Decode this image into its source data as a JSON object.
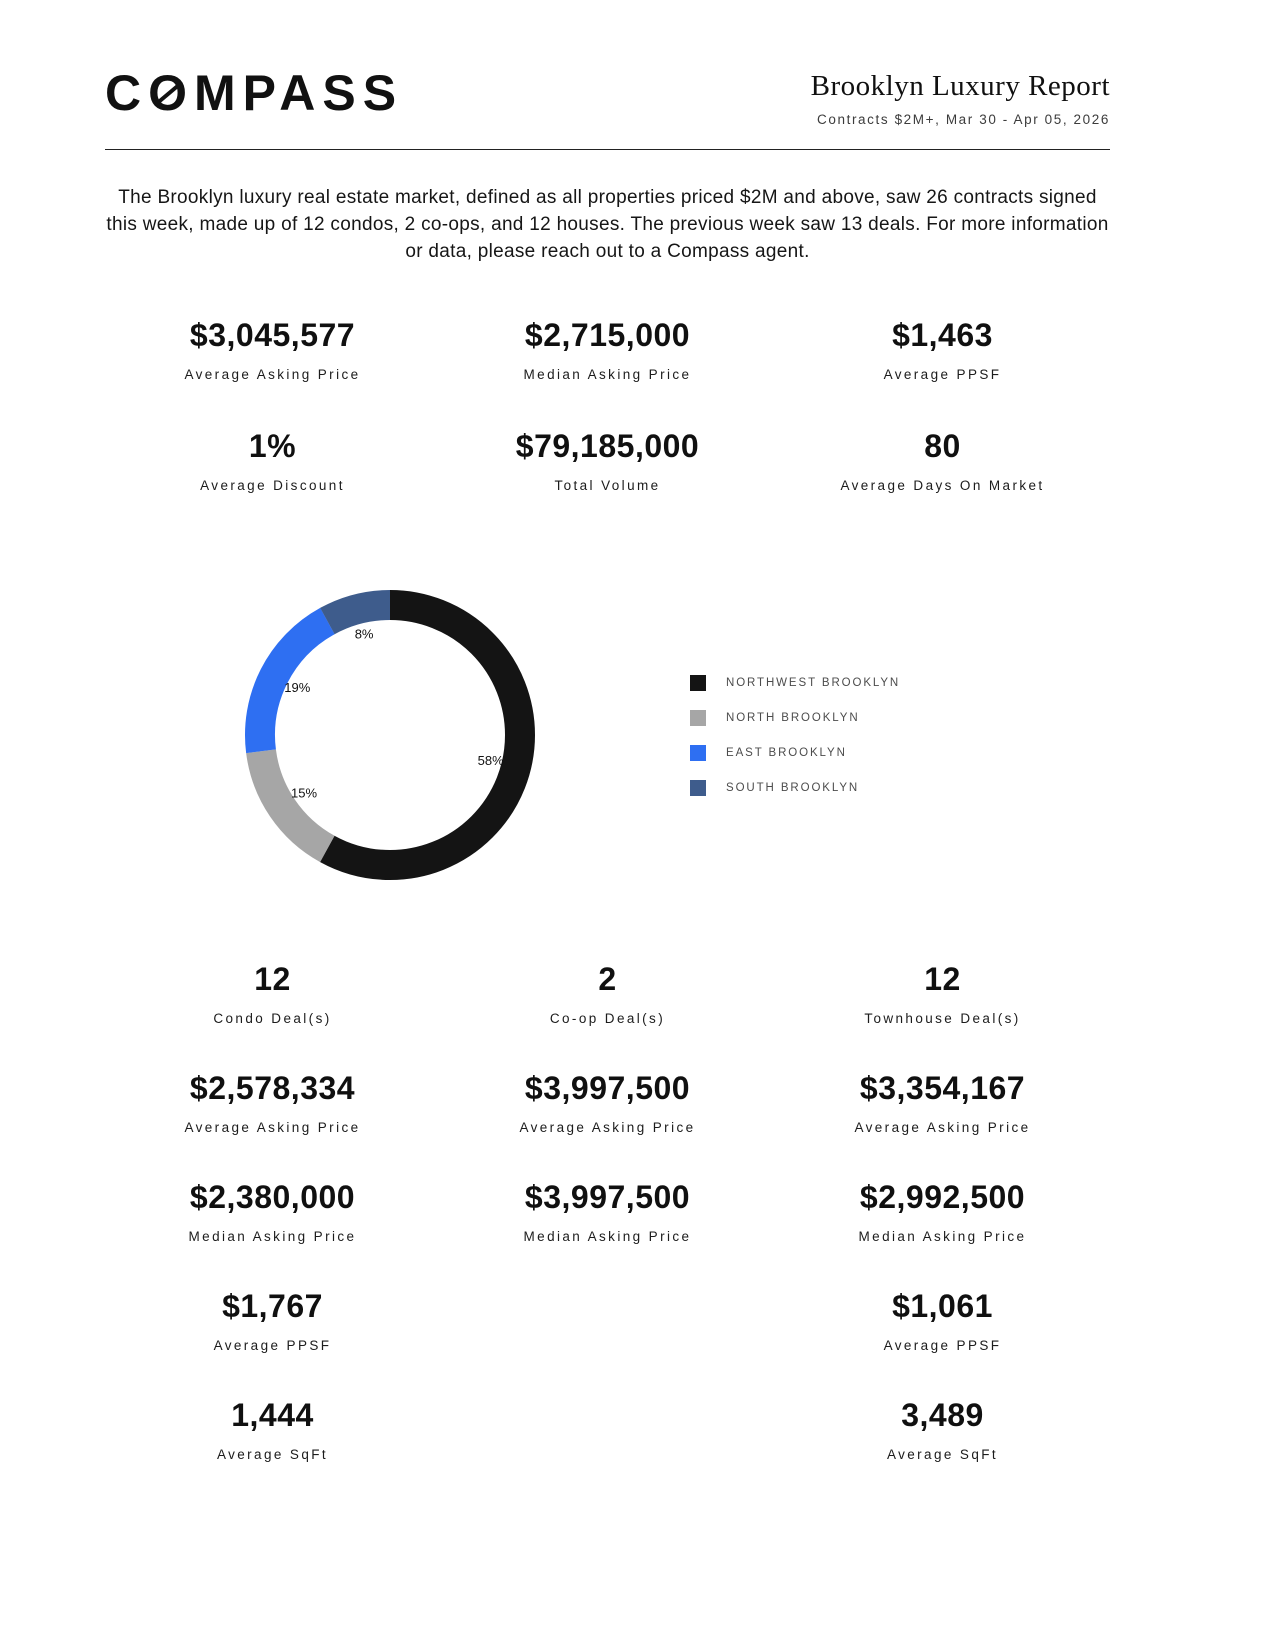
{
  "header": {
    "logo_prefix": "C",
    "logo_o": "O",
    "logo_suffix": "MPASS",
    "title": "Brooklyn Luxury Report",
    "subtitle": "Contracts $2M+, Mar 30 - Apr 05, 2026"
  },
  "intro": "The Brooklyn luxury real estate market, defined as all properties priced $2M and above, saw 26 contracts signed this week, made up of 12 condos, 2 co-ops, and 12 houses. The previous week saw 13 deals. For more information or data, please reach out to a Compass agent.",
  "summary_stats": [
    {
      "value": "$3,045,577",
      "label": "Average Asking Price"
    },
    {
      "value": "$2,715,000",
      "label": "Median Asking Price"
    },
    {
      "value": "$1,463",
      "label": "Average PPSF"
    },
    {
      "value": "1%",
      "label": "Average Discount"
    },
    {
      "value": "$79,185,000",
      "label": "Total Volume"
    },
    {
      "value": "80",
      "label": "Average Days On Market"
    }
  ],
  "chart_data": {
    "type": "pie",
    "donut": true,
    "title": "",
    "labels": [
      "NORTHWEST BROOKLYN",
      "NORTH BROOKLYN",
      "EAST BROOKLYN",
      "SOUTH BROOKLYN"
    ],
    "values": [
      58,
      15,
      19,
      8
    ],
    "colors": [
      "#141414",
      "#a6a6a6",
      "#2e6ff2",
      "#3e5c8c"
    ],
    "legend_position": "right",
    "start_angle_deg": -90,
    "direction": "clockwise"
  },
  "deal_columns": [
    {
      "count": "12",
      "count_label": "Condo Deal(s)",
      "stats": [
        {
          "value": "$2,578,334",
          "label": "Average Asking Price"
        },
        {
          "value": "$2,380,000",
          "label": "Median Asking Price"
        },
        {
          "value": "$1,767",
          "label": "Average PPSF"
        },
        {
          "value": "1,444",
          "label": "Average SqFt"
        }
      ]
    },
    {
      "count": "2",
      "count_label": "Co-op Deal(s)",
      "stats": [
        {
          "value": "$3,997,500",
          "label": "Average Asking Price"
        },
        {
          "value": "$3,997,500",
          "label": "Median Asking Price"
        },
        null,
        null
      ]
    },
    {
      "count": "12",
      "count_label": "Townhouse Deal(s)",
      "stats": [
        {
          "value": "$3,354,167",
          "label": "Average Asking Price"
        },
        {
          "value": "$2,992,500",
          "label": "Median Asking Price"
        },
        {
          "value": "$1,061",
          "label": "Average PPSF"
        },
        {
          "value": "3,489",
          "label": "Average SqFt"
        }
      ]
    }
  ]
}
